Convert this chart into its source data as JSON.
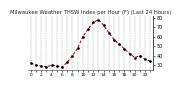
{
  "title": "Milwaukee Weather THSW Index per Hour (F) (Last 24 Hours)",
  "x_values": [
    0,
    1,
    2,
    3,
    4,
    5,
    6,
    7,
    8,
    9,
    10,
    11,
    12,
    13,
    14,
    15,
    16,
    17,
    18,
    19,
    20,
    21,
    22,
    23
  ],
  "y_values": [
    32,
    30,
    29,
    28,
    30,
    29,
    28,
    33,
    40,
    48,
    60,
    68,
    75,
    78,
    72,
    64,
    57,
    52,
    47,
    42,
    38,
    40,
    36,
    34
  ],
  "line_color": "#cc0000",
  "marker_color": "#000000",
  "background_color": "#ffffff",
  "plot_bg_color": "#ffffff",
  "grid_color": "#999999",
  "ylim": [
    25,
    82
  ],
  "ytick_values": [
    30,
    40,
    50,
    60,
    70,
    80
  ],
  "ytick_labels": [
    "30",
    "40",
    "50",
    "60",
    "70",
    "80"
  ],
  "ylabel_fontsize": 3.5,
  "title_fontsize": 3.8,
  "tick_fontsize": 3.2,
  "line_width": 0.8,
  "marker_size": 1.8
}
